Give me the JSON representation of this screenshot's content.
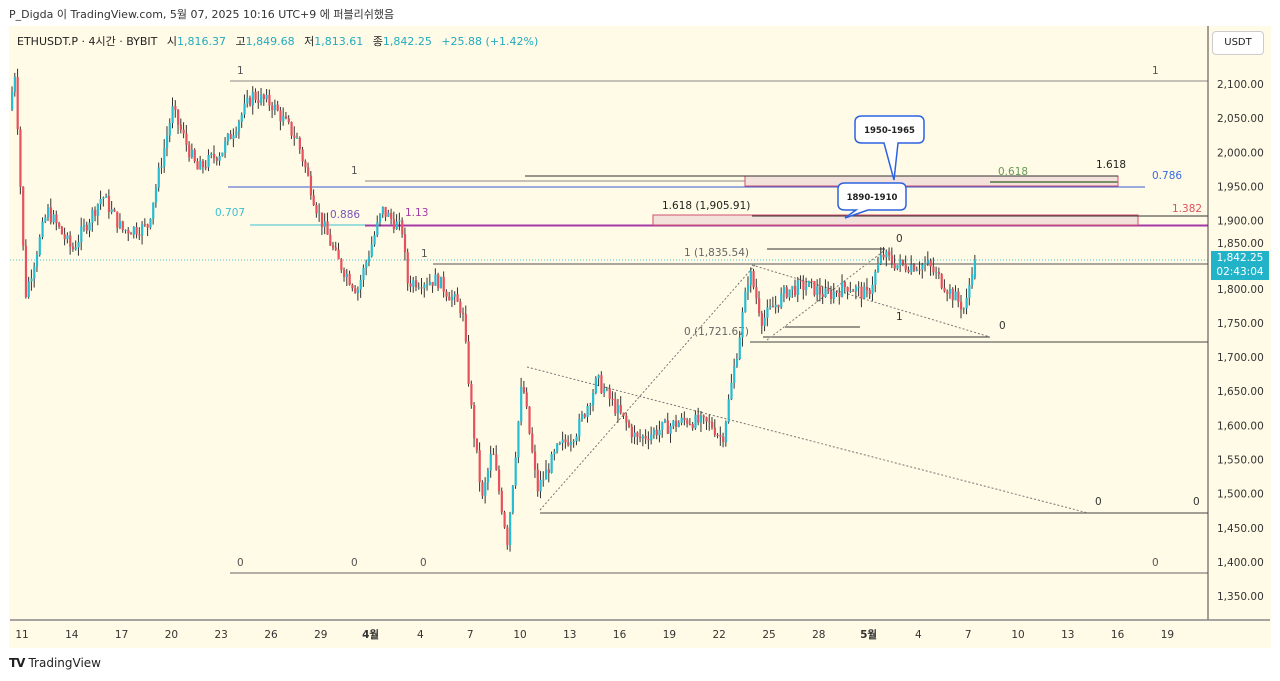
{
  "publish_line": "P_Digda 이 TradingView.com, 5월 07, 2025 10:16 UTC+9 에 퍼블리쉬했음",
  "legend": {
    "symbol": "ETHUSDT.P · 4시간 · BYBIT",
    "open_label": "시",
    "open": "1,816.37",
    "high_label": "고",
    "high": "1,849.68",
    "low_label": "저",
    "low": "1,813.61",
    "close_label": "종",
    "close": "1,842.25",
    "change": "+25.88 (+1.42%)"
  },
  "currency_button": "USDT",
  "price_tag": {
    "price": "1,842.25",
    "countdown": "02:43:04"
  },
  "footer": {
    "logo_text": "TradingView"
  },
  "colors": {
    "background": "#fffbe6",
    "up": "#26bcd3",
    "down": "#e8505b",
    "price_tag": "#22b3c9"
  },
  "annotations": {
    "fib_top_1_left": "1",
    "fib_top_1_right": "1",
    "fib_bottom_0_a": "0",
    "fib_bottom_0_b": "0",
    "fib_bottom_0_c": "0",
    "fib_bottom_0_d": "0",
    "level_0786": "0.786",
    "level_0707": "0.707",
    "level_0886": "0.886",
    "level_113": "1.13",
    "level_1_mid": "1",
    "level_1618": "1.618",
    "level_0618": "0.618",
    "ext_1618": "1.618 (1,905.91)",
    "level_1382": "1.382",
    "level_1_lower": "1",
    "ext_1": "1 (1,835.54)",
    "ext_0": "0 (1,721.67)",
    "tri_0_top": "0",
    "tri_1": "1",
    "tri_0_right": "0",
    "low_0_a": "0",
    "low_0_b": "0",
    "callout_upper": "1950-1965",
    "callout_lower": "1890-1910"
  },
  "chart_data": {
    "type": "candlestick",
    "title": "ETHUSDT.P · 4시간 · BYBIT",
    "interval": "4h",
    "y_axis": {
      "range": [
        1320,
        2180
      ],
      "ticks": [
        "2,100.00",
        "2,050.00",
        "2,000.00",
        "1,950.00",
        "1,900.00",
        "1,850.00",
        "1,800.00",
        "1,750.00",
        "1,700.00",
        "1,650.00",
        "1,600.00",
        "1,550.00",
        "1,500.00",
        "1,450.00",
        "1,400.00",
        "1,350.00"
      ],
      "tick_values": [
        2100,
        2050,
        2000,
        1950,
        1900,
        1850,
        1800,
        1750,
        1700,
        1650,
        1600,
        1550,
        1500,
        1450,
        1400,
        1350
      ]
    },
    "x_axis": {
      "ticks": [
        "11",
        "14",
        "17",
        "20",
        "23",
        "26",
        "29",
        "4월",
        "4",
        "7",
        "10",
        "13",
        "16",
        "19",
        "22",
        "25",
        "28",
        "5월",
        "4",
        "7",
        "10",
        "13",
        "16",
        "19"
      ],
      "tick_days": [
        0,
        3,
        6,
        9,
        12,
        15,
        18,
        21,
        24,
        27,
        30,
        33,
        36,
        39,
        42,
        45,
        48,
        51,
        54,
        57,
        60,
        63,
        66,
        69
      ]
    },
    "price_path": [
      [
        -0.6,
        2062
      ],
      [
        -0.24,
        2120
      ],
      [
        0.36,
        1790
      ],
      [
        1.69,
        1915
      ],
      [
        3.19,
        1857
      ],
      [
        5.0,
        1937
      ],
      [
        6.2,
        1886
      ],
      [
        7.71,
        1890
      ],
      [
        9.22,
        2062
      ],
      [
        10.72,
        1974
      ],
      [
        12.23,
        2003
      ],
      [
        14.04,
        2084
      ],
      [
        15.24,
        2070
      ],
      [
        16.75,
        2018
      ],
      [
        17.95,
        1915
      ],
      [
        19.16,
        1842
      ],
      [
        20.36,
        1798
      ],
      [
        21.87,
        1915
      ],
      [
        23.07,
        1886
      ],
      [
        23.37,
        1810
      ],
      [
        25.18,
        1813
      ],
      [
        26.69,
        1769
      ],
      [
        27.29,
        1608
      ],
      [
        27.89,
        1490
      ],
      [
        28.49,
        1564
      ],
      [
        29.4,
        1432
      ],
      [
        30.3,
        1666
      ],
      [
        31.2,
        1505
      ],
      [
        32.41,
        1564
      ],
      [
        33.61,
        1593
      ],
      [
        34.82,
        1666
      ],
      [
        36.02,
        1622
      ],
      [
        37.23,
        1579
      ],
      [
        38.43,
        1593
      ],
      [
        40.24,
        1608
      ],
      [
        41.75,
        1600
      ],
      [
        42.35,
        1579
      ],
      [
        43.25,
        1710
      ],
      [
        43.98,
        1827
      ],
      [
        44.76,
        1754
      ],
      [
        46.27,
        1798
      ],
      [
        47.47,
        1805
      ],
      [
        48.67,
        1790
      ],
      [
        49.88,
        1805
      ],
      [
        51.08,
        1790
      ],
      [
        51.99,
        1850
      ],
      [
        52.89,
        1835
      ],
      [
        54.7,
        1835
      ],
      [
        55.6,
        1810
      ],
      [
        56.99,
        1769
      ],
      [
        57.47,
        1842.25
      ]
    ],
    "last": {
      "open": 1816.37,
      "high": 1849.68,
      "low": 1813.61,
      "close": 1842.25
    }
  }
}
